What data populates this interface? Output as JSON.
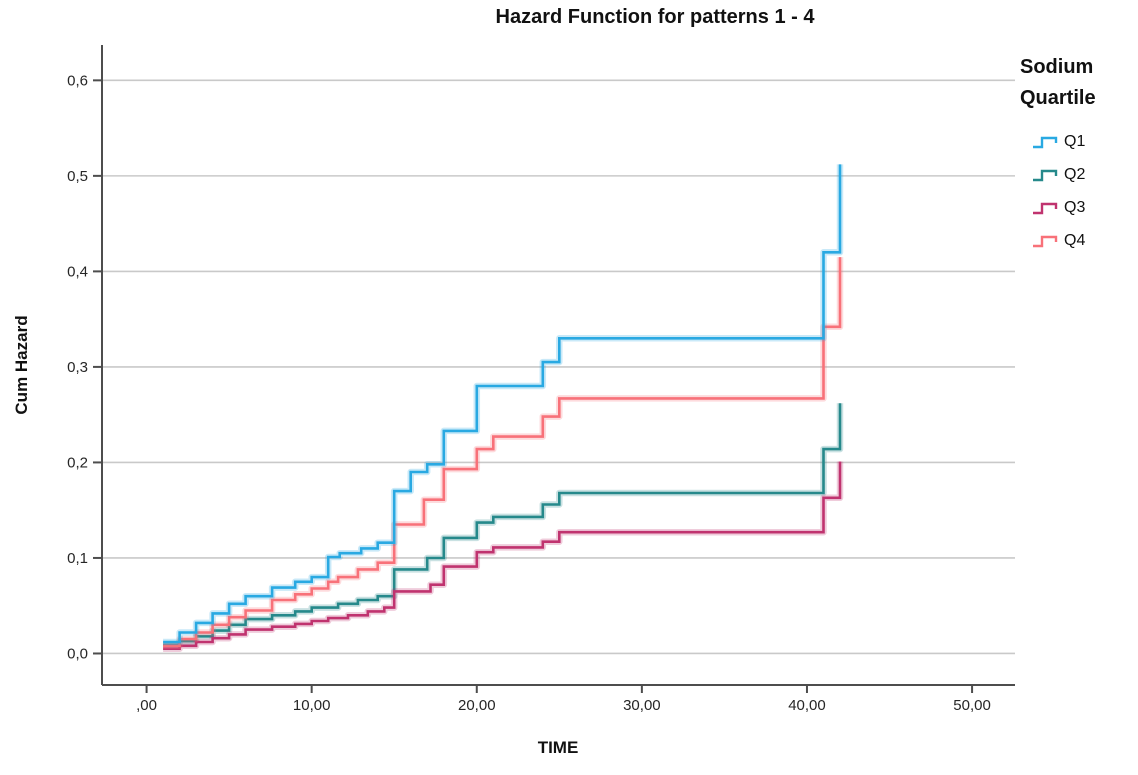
{
  "title": "Hazard Function for patterns 1 - 4",
  "legend": {
    "title_line1": "Sodium",
    "title_line2": "Quartile",
    "entries": [
      "Q1",
      "Q2",
      "Q3",
      "Q4"
    ]
  },
  "colors": {
    "q1": "#29A9E2",
    "q2": "#26898B",
    "q3": "#C0336F",
    "q4": "#F87179",
    "axis": "#4D4D4D",
    "grid": "#C9C9C9",
    "tick_text": "#262626"
  },
  "chart_data": {
    "type": "line",
    "subtype": "step",
    "title": "Hazard Function for patterns 1 - 4",
    "xlabel": "TIME",
    "ylabel": "Cum Hazard",
    "xlim": [
      -2.7,
      52.6
    ],
    "ylim": [
      -0.033,
      0.637
    ],
    "x_ticks": [
      0,
      10,
      20,
      30,
      40,
      50
    ],
    "x_tick_labels": [
      ",00",
      "10,00",
      "20,00",
      "30,00",
      "40,00",
      "50,00"
    ],
    "y_ticks": [
      0.0,
      0.1,
      0.2,
      0.3,
      0.4,
      0.5,
      0.6
    ],
    "y_tick_labels": [
      "0,0",
      "0,1",
      "0,2",
      "0,3",
      "0,4",
      "0,5",
      "0,6"
    ],
    "decimal_separator": ",",
    "grid": "horizontal",
    "legend_position": "right",
    "legend_title": "Sodium Quartile",
    "series": [
      {
        "name": "Q1",
        "color": "#29A9E2",
        "points": [
          [
            1,
            0.012
          ],
          [
            2,
            0.022
          ],
          [
            3,
            0.032
          ],
          [
            4,
            0.042
          ],
          [
            5,
            0.052
          ],
          [
            6,
            0.06
          ],
          [
            7.6,
            0.069
          ],
          [
            9,
            0.075
          ],
          [
            10,
            0.08
          ],
          [
            11,
            0.101
          ],
          [
            11.7,
            0.105
          ],
          [
            13,
            0.11
          ],
          [
            14,
            0.116
          ],
          [
            15,
            0.17
          ],
          [
            16,
            0.19
          ],
          [
            17,
            0.198
          ],
          [
            18,
            0.233
          ],
          [
            20,
            0.28
          ],
          [
            24,
            0.305
          ],
          [
            25,
            0.33
          ],
          [
            41,
            0.42
          ],
          [
            42,
            0.512
          ]
        ]
      },
      {
        "name": "Q2",
        "color": "#26898B",
        "points": [
          [
            1,
            0.009
          ],
          [
            2,
            0.013
          ],
          [
            3,
            0.018
          ],
          [
            4,
            0.024
          ],
          [
            5,
            0.03
          ],
          [
            6,
            0.036
          ],
          [
            7.6,
            0.04
          ],
          [
            9,
            0.044
          ],
          [
            10,
            0.048
          ],
          [
            11.6,
            0.052
          ],
          [
            12.8,
            0.056
          ],
          [
            14,
            0.06
          ],
          [
            15,
            0.088
          ],
          [
            17,
            0.1
          ],
          [
            18,
            0.121
          ],
          [
            20,
            0.137
          ],
          [
            21,
            0.143
          ],
          [
            24,
            0.156
          ],
          [
            25,
            0.168
          ],
          [
            41,
            0.214
          ],
          [
            42,
            0.262
          ]
        ]
      },
      {
        "name": "Q3",
        "color": "#C0336F",
        "points": [
          [
            1,
            0.005
          ],
          [
            2,
            0.008
          ],
          [
            3,
            0.012
          ],
          [
            4,
            0.016
          ],
          [
            5,
            0.02
          ],
          [
            6,
            0.025
          ],
          [
            7.6,
            0.028
          ],
          [
            9,
            0.031
          ],
          [
            10,
            0.034
          ],
          [
            11,
            0.037
          ],
          [
            12.2,
            0.04
          ],
          [
            13.4,
            0.044
          ],
          [
            14.4,
            0.048
          ],
          [
            15,
            0.065
          ],
          [
            17.2,
            0.072
          ],
          [
            18,
            0.091
          ],
          [
            20,
            0.106
          ],
          [
            21,
            0.111
          ],
          [
            24,
            0.117
          ],
          [
            25,
            0.127
          ],
          [
            41,
            0.163
          ],
          [
            42,
            0.201
          ]
        ]
      },
      {
        "name": "Q4",
        "color": "#F87179",
        "points": [
          [
            1,
            0.008
          ],
          [
            2,
            0.015
          ],
          [
            3,
            0.022
          ],
          [
            4,
            0.03
          ],
          [
            5,
            0.038
          ],
          [
            6,
            0.045
          ],
          [
            7.6,
            0.056
          ],
          [
            9,
            0.062
          ],
          [
            10,
            0.068
          ],
          [
            11,
            0.075
          ],
          [
            11.6,
            0.08
          ],
          [
            12.8,
            0.088
          ],
          [
            14,
            0.095
          ],
          [
            15,
            0.135
          ],
          [
            16.8,
            0.161
          ],
          [
            18,
            0.193
          ],
          [
            20,
            0.214
          ],
          [
            21,
            0.227
          ],
          [
            24,
            0.248
          ],
          [
            25,
            0.267
          ],
          [
            41,
            0.342
          ],
          [
            42,
            0.415
          ]
        ]
      }
    ]
  }
}
